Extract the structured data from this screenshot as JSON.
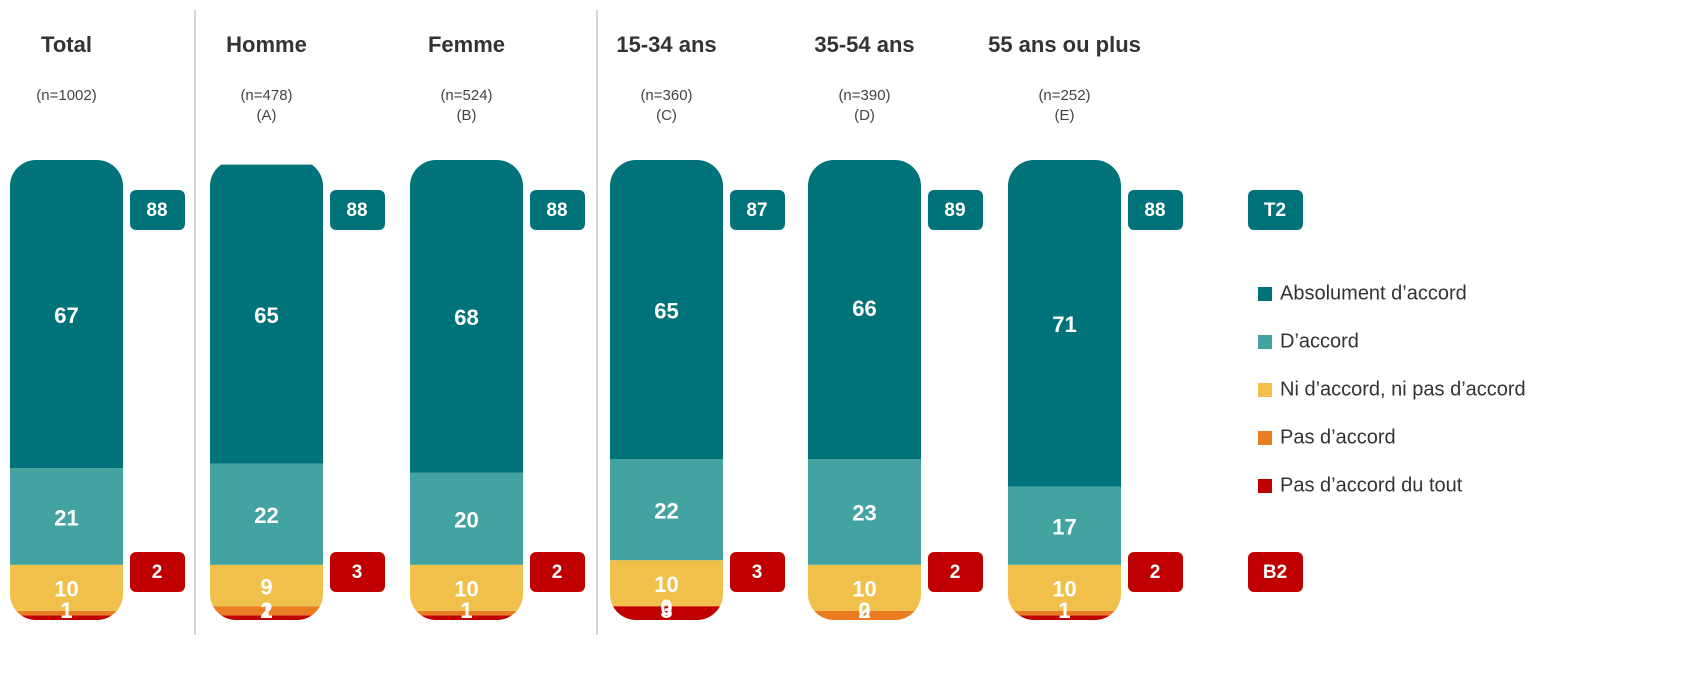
{
  "chart_data": {
    "type": "bar",
    "stacked": true,
    "categories": [
      "Total",
      "Homme",
      "Femme",
      "15-34 ans",
      "35-54 ans",
      "55 ans ou plus"
    ],
    "sample_sizes": [
      "(n=1002)",
      "(n=478)",
      "(n=524)",
      "(n=360)",
      "(n=390)",
      "(n=252)"
    ],
    "group_letters": [
      null,
      "(A)",
      "(B)",
      "(C)",
      "(D)",
      "(E)"
    ],
    "ylim": [
      0,
      100
    ],
    "series": [
      {
        "name": "Absolument d’accord",
        "color": "#00737a",
        "values": [
          67,
          65,
          68,
          65,
          66,
          71
        ]
      },
      {
        "name": "D’accord",
        "color": "#43a3a0",
        "values": [
          21,
          22,
          20,
          22,
          23,
          17
        ]
      },
      {
        "name": "Ni d’accord, ni pas d’accord",
        "color": "#f0c04a",
        "values": [
          10,
          9,
          10,
          10,
          10,
          10
        ]
      },
      {
        "name": "Pas d’accord",
        "color": "#e87d22",
        "values": [
          1,
          2,
          1,
          0,
          2,
          1
        ]
      },
      {
        "name": "Pas d’accord du tout",
        "color": "#c00000",
        "values": [
          1,
          1,
          1,
          3,
          0,
          1
        ]
      }
    ],
    "top2": {
      "label": "T2",
      "color": "#00737a",
      "values": [
        88,
        88,
        88,
        87,
        89,
        88
      ]
    },
    "bottom2": {
      "label": "B2",
      "color": "#c00000",
      "values": [
        2,
        3,
        2,
        3,
        2,
        2
      ]
    }
  }
}
